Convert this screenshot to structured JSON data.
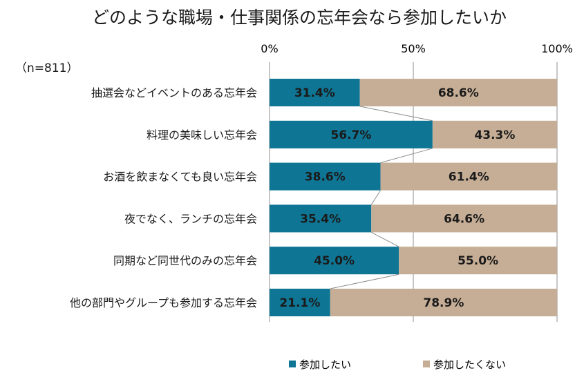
{
  "chart_data": {
    "type": "bar",
    "orientation": "horizontal",
    "stacked": true,
    "normalized_percent": true,
    "title": "どのような職場・仕事関係の忘年会なら参加したいか",
    "sample_note": "（n=811）",
    "x_ticks": [
      "0%",
      "50%",
      "100%"
    ],
    "xlim": [
      0,
      100
    ],
    "categories": [
      "抽選会などイベントのある忘年会",
      "料理の美味しい忘年会",
      "お酒を飲まなくても良い忘年会",
      "夜でなく、ランチの忘年会",
      "同期など同世代のみの忘年会",
      "他の部門やグループも参加する忘年会"
    ],
    "series": [
      {
        "name": "参加したい",
        "color": "#0f7594",
        "values": [
          31.4,
          56.7,
          38.6,
          35.4,
          45.0,
          21.1
        ],
        "labels": [
          "31.4%",
          "56.7%",
          "38.6%",
          "35.4%",
          "45.0%",
          "21.1%"
        ]
      },
      {
        "name": "参加したくない",
        "color": "#c6ae96",
        "values": [
          68.6,
          43.3,
          61.4,
          64.6,
          55.0,
          78.9
        ],
        "labels": [
          "68.6%",
          "43.3%",
          "61.4%",
          "64.6%",
          "55.0%",
          "78.9%"
        ]
      }
    ],
    "legend_position": "bottom",
    "series_connector_lines": true,
    "colors": {
      "gridline": "#8c8c8c",
      "connector": "#8c8c8c"
    }
  }
}
